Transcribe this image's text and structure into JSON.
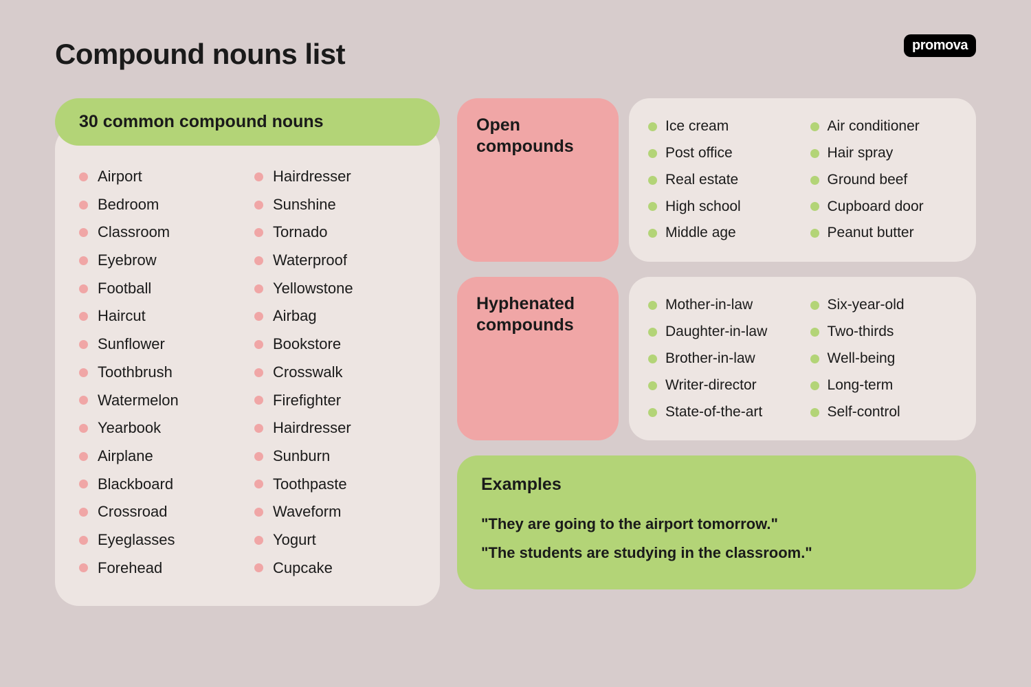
{
  "brand": "promova",
  "title": "Compound nouns list",
  "colors": {
    "page_bg": "#d7cccc",
    "card_bg": "#ede5e2",
    "green": "#b3d477",
    "pink": "#f0a6a6",
    "text": "#1a1a1a",
    "logo_bg": "#000000",
    "logo_text": "#ffffff"
  },
  "typography": {
    "title_size": 42,
    "heading_size": 25,
    "list_size": 22,
    "weight_heading": 800
  },
  "common": {
    "heading": "30 common compound nouns",
    "bullet_color": "#f0a6a6",
    "col1": [
      "Airport",
      "Bedroom",
      "Classroom",
      "Eyebrow",
      "Football",
      "Haircut",
      "Sunflower",
      "Toothbrush",
      "Watermelon",
      "Yearbook",
      "Airplane",
      "Blackboard",
      "Crossroad",
      "Eyeglasses",
      "Forehead"
    ],
    "col2": [
      "Hairdresser",
      "Sunshine",
      "Tornado",
      "Waterproof",
      "Yellowstone",
      "Airbag",
      "Bookstore",
      "Crosswalk",
      "Firefighter",
      "Hairdresser",
      "Sunburn",
      "Toothpaste",
      "Waveform",
      "Yogurt",
      "Cupcake"
    ]
  },
  "open": {
    "heading": "Open compounds",
    "bullet_color": "#b3d477",
    "col1": [
      "Ice cream",
      "Post office",
      "Real estate",
      "High school",
      "Middle age"
    ],
    "col2": [
      "Air conditioner",
      "Hair spray",
      "Ground beef",
      "Cupboard door",
      "Peanut butter"
    ]
  },
  "hyphenated": {
    "heading": "Hyphenated compounds",
    "bullet_color": "#b3d477",
    "col1": [
      "Mother-in-law",
      "Daughter-in-law",
      "Brother-in-law",
      "Writer-director",
      "State-of-the-art"
    ],
    "col2": [
      "Six-year-old",
      "Two-thirds",
      "Well-being",
      "Long-term",
      "Self-control"
    ]
  },
  "examples": {
    "heading": "Examples",
    "lines": [
      "\"They are going to the airport tomorrow.\"",
      "\"The students are studying in the classroom.\""
    ]
  }
}
